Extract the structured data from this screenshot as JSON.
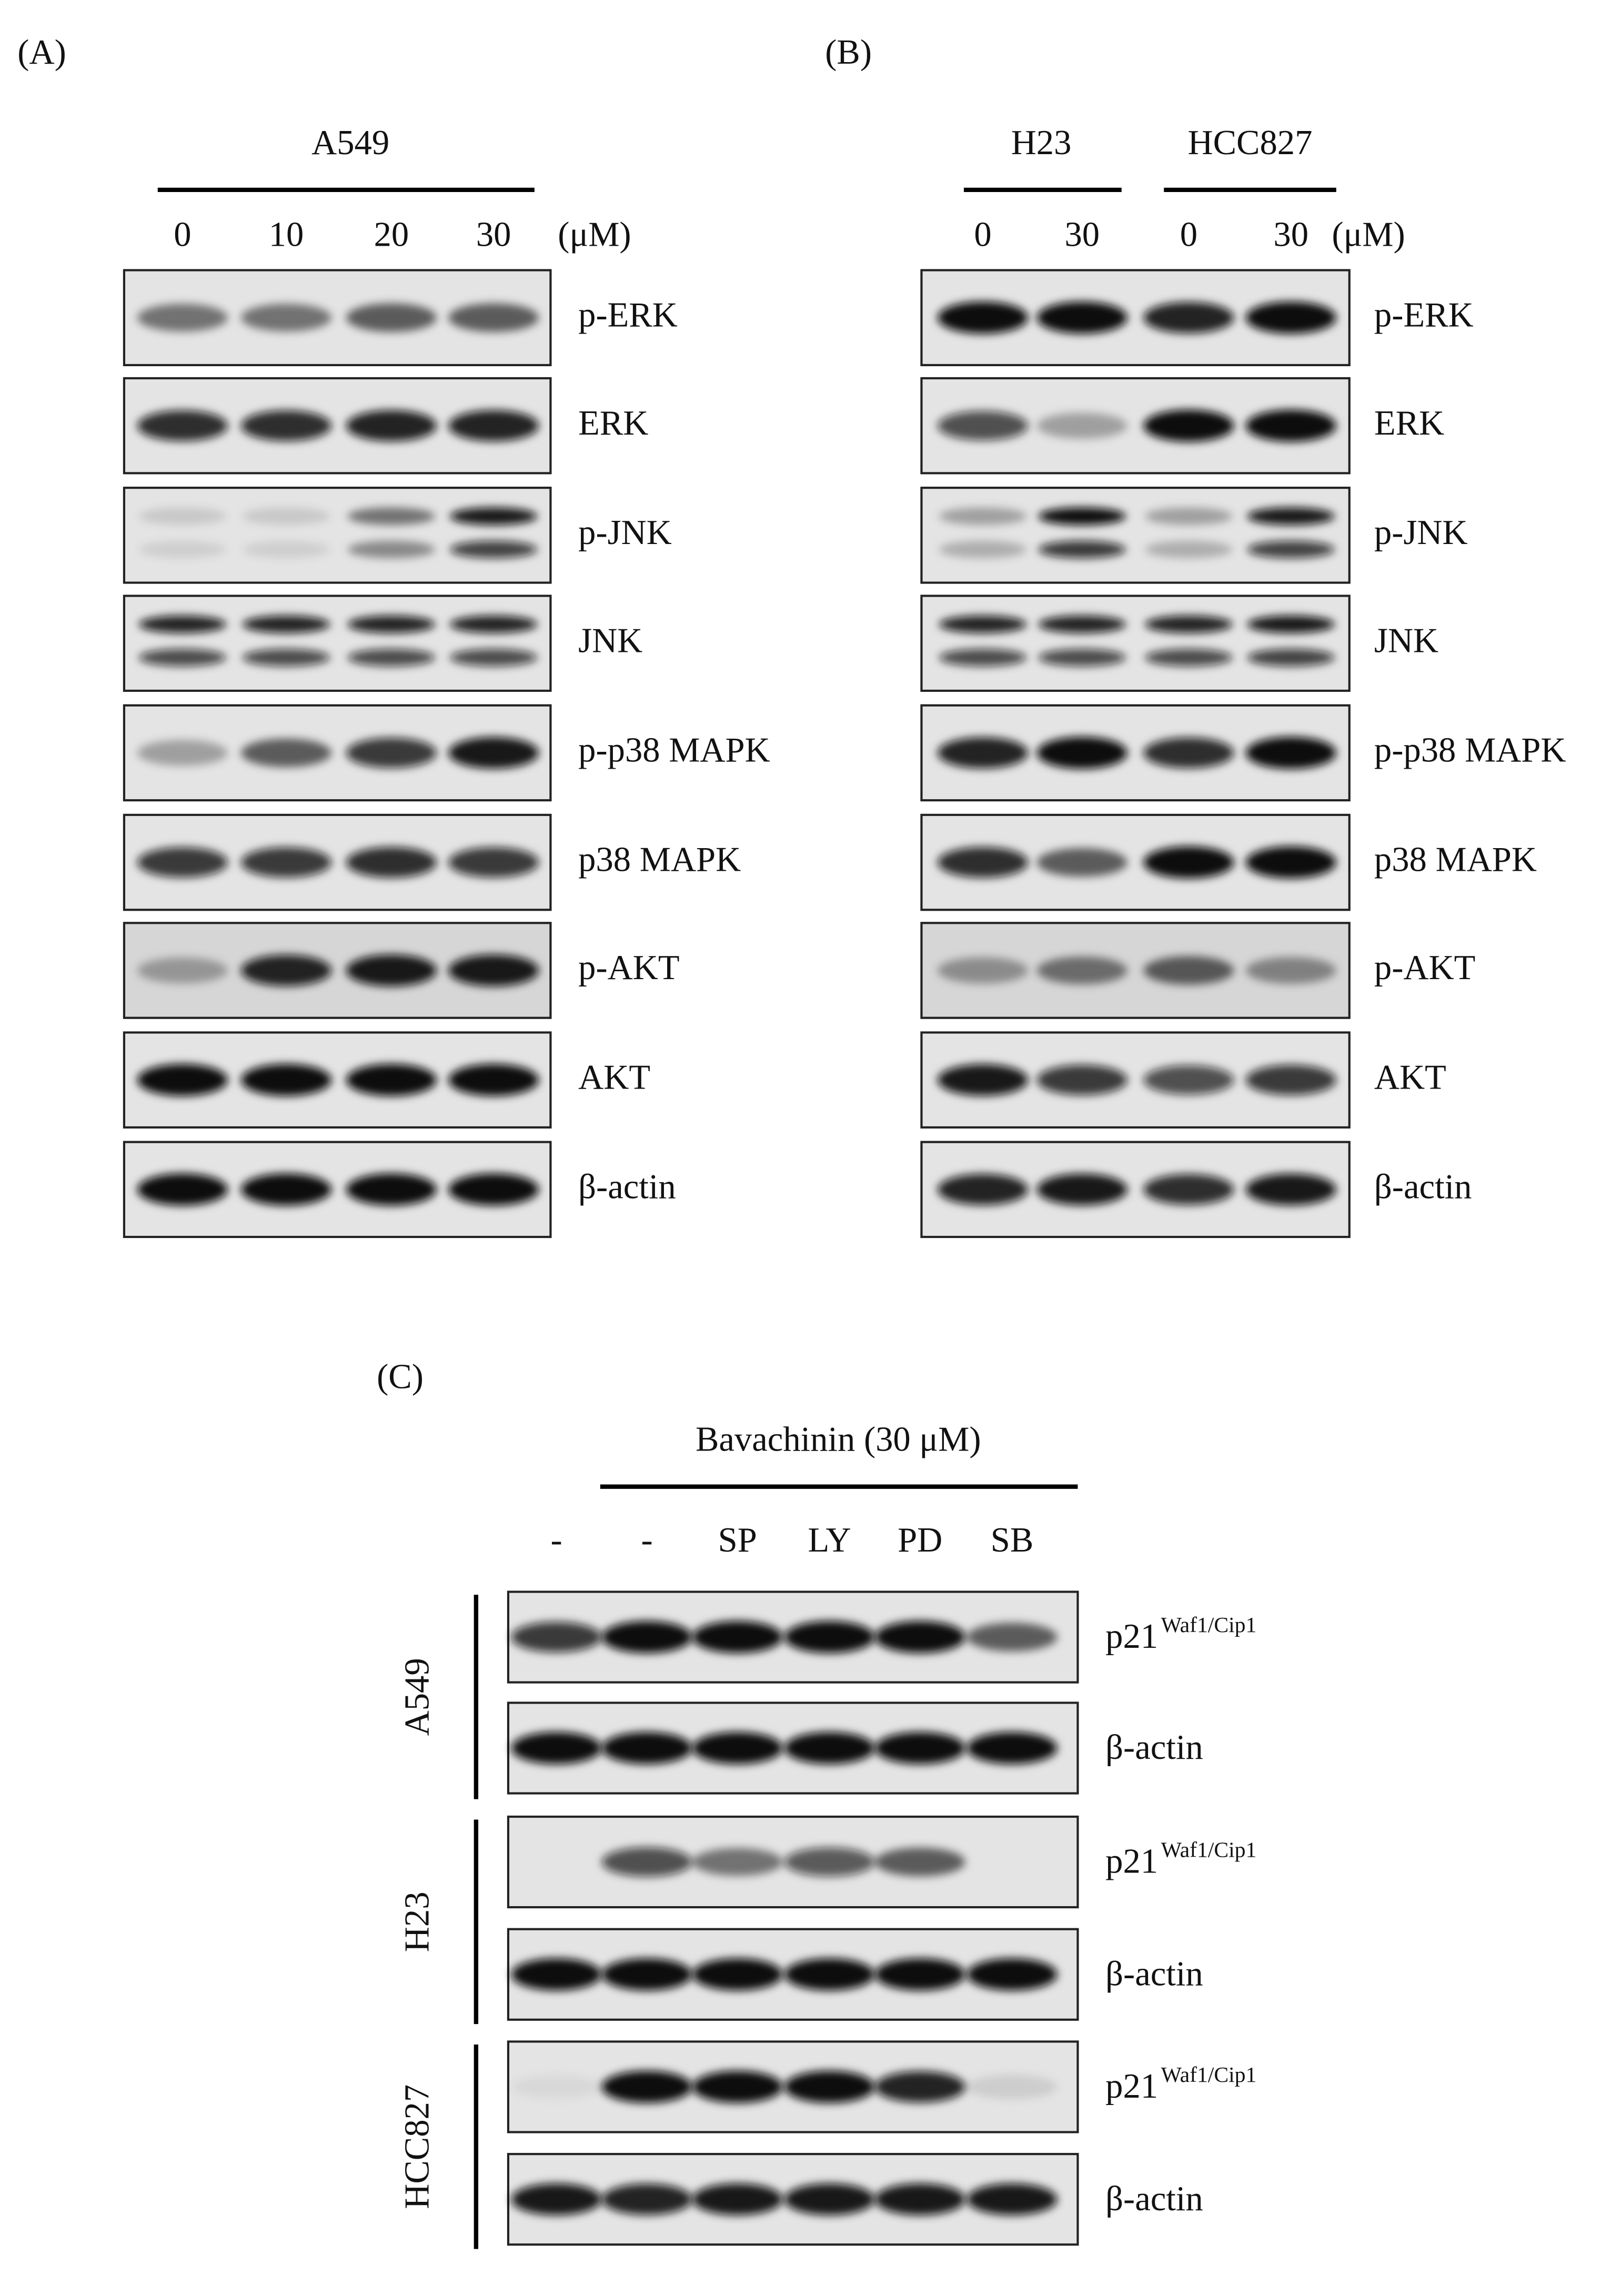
{
  "panel_a": {
    "label": "(A)",
    "cell_line": "A549",
    "doses": [
      "0",
      "10",
      "20",
      "30"
    ],
    "unit": "(μM)",
    "proteins": [
      "p-ERK",
      "ERK",
      "p-JNK",
      "JNK",
      "p-p38 MAPK",
      "p38 MAPK",
      "p-AKT",
      "AKT",
      "β-actin"
    ]
  },
  "panel_b": {
    "label": "(B)",
    "cell_lines": [
      "H23",
      "HCC827"
    ],
    "doses": [
      "0",
      "30",
      "0",
      "30"
    ],
    "unit": "(μM)",
    "proteins": [
      "p-ERK",
      "ERK",
      "p-JNK",
      "JNK",
      "p-p38 MAPK",
      "p38 MAPK",
      "p-AKT",
      "AKT",
      "β-actin"
    ]
  },
  "panel_c": {
    "label": "(C)",
    "treatment": "Bavachinin (30 μM)",
    "conditions": [
      "-",
      "-",
      "SP",
      "LY",
      "PD",
      "SB"
    ],
    "groups": [
      {
        "cell_line": "A549",
        "blots": [
          {
            "name": "p21",
            "sup": "Waf1/Cip1"
          },
          {
            "name": "β-actin"
          }
        ]
      },
      {
        "cell_line": "H23",
        "blots": [
          {
            "name": "p21",
            "sup": "Waf1/Cip1"
          },
          {
            "name": "β-actin"
          }
        ]
      },
      {
        "cell_line": "HCC827",
        "blots": [
          {
            "name": "p21",
            "sup": "Waf1/Cip1"
          },
          {
            "name": "β-actin"
          }
        ]
      }
    ]
  }
}
